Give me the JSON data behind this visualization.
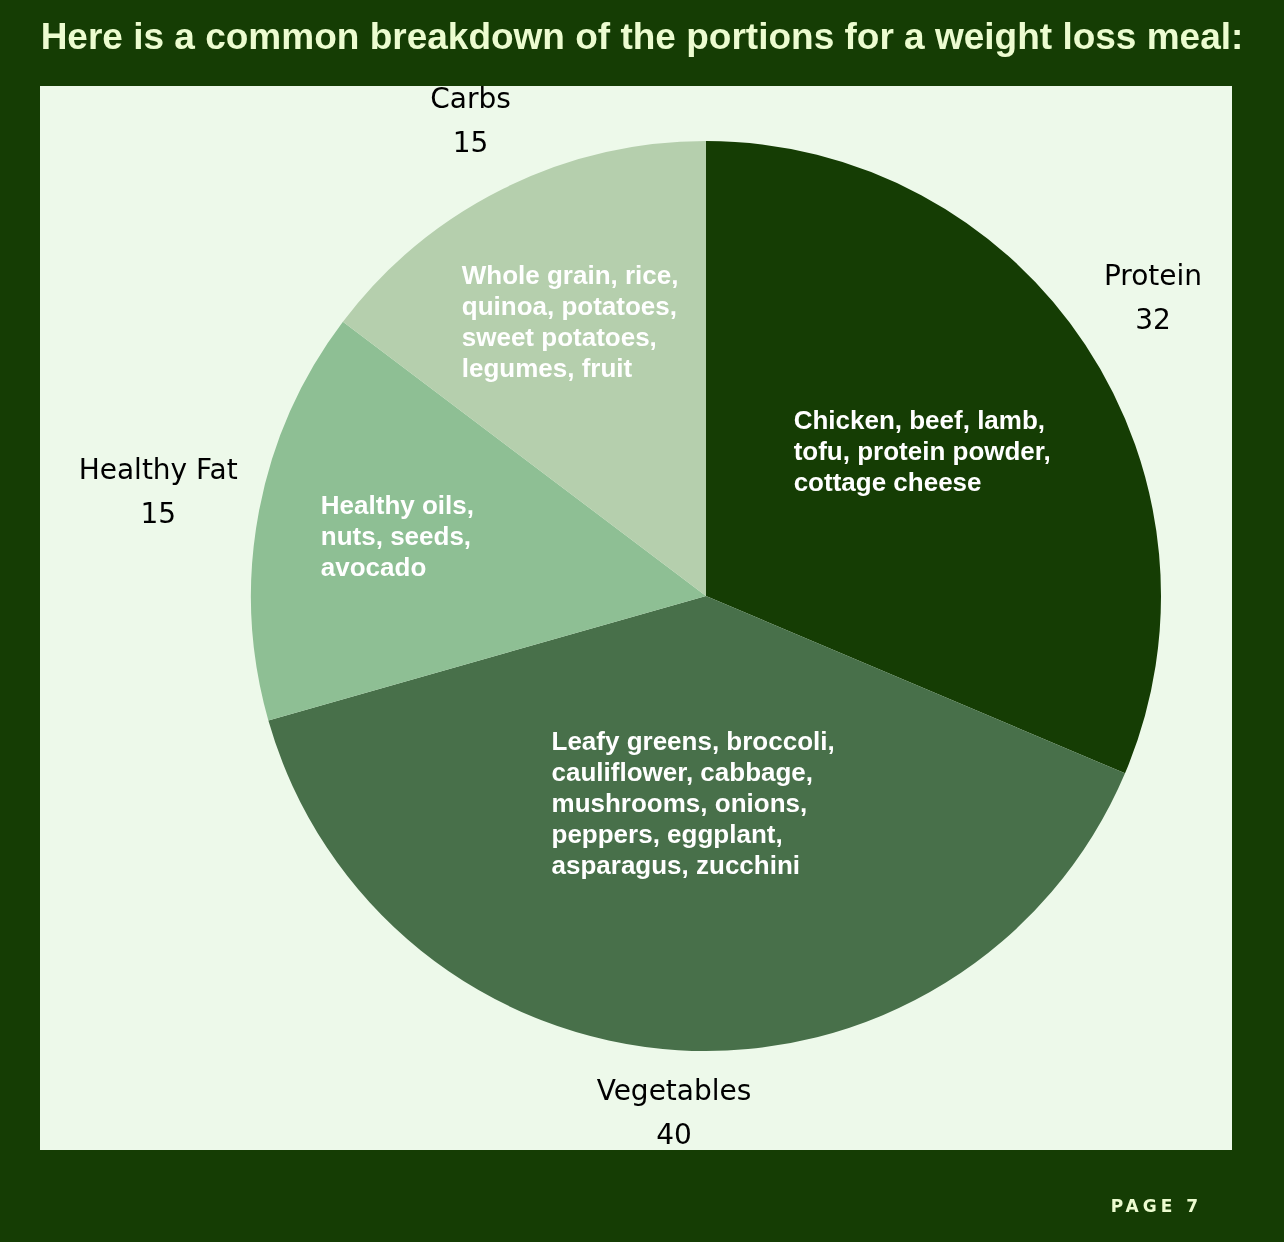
{
  "chart_data": {
    "type": "pie",
    "title": "Here is a common breakdown of the portions for a weight loss meal:",
    "categories": [
      "Protein",
      "Vegetables",
      "Healthy Fat",
      "Carbs"
    ],
    "values": [
      32,
      40,
      15,
      15
    ],
    "colors": [
      "#153d04",
      "#48704a",
      "#8ebf94",
      "#b5cfad"
    ],
    "data_labels": true,
    "annotations": [
      "Chicken, beef, lamb, tofu, protein powder, cottage cheese",
      "Leafy greens, broccoli, cauliflower, cabbage, mushrooms, onions, peppers, eggplant, asparagus, zucchini",
      "Healthy oils, nuts, seeds, avocado",
      "Whole grain, rice, quinoa, potatoes, sweet potatoes, legumes, fruit",
      "PAGE 7"
    ]
  }
}
